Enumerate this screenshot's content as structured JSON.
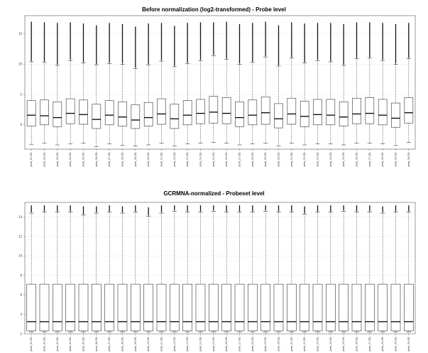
{
  "chart_data": [
    {
      "type": "boxplot",
      "title": "Before normalization (log2-transformed) - Probe level",
      "categories": [
        "peak_01.CEL",
        "peak_02.CEL",
        "peak_03.CEL",
        "peak_04.CEL",
        "peak_05.CEL",
        "peak_06.CEL",
        "peak_07.CEL",
        "peak_08.CEL",
        "peak_09.CEL",
        "peak_10.CEL",
        "peak_11.CEL",
        "peak_12.CEL",
        "peak_13.CEL",
        "peak_14.CEL",
        "peak_15.CEL",
        "peak_16.CEL",
        "peak_17.CEL",
        "peak_18.CEL",
        "peak_19.CEL",
        "peak_20.CEL",
        "peak_21.CEL",
        "peak_22.CEL",
        "peak_23.CEL",
        "peak_24.CEL",
        "peak_25.CEL",
        "peak_26.CEL",
        "peak_27.CEL",
        "peak_28.CEL",
        "peak_29.CEL",
        "peak_30.CEL"
      ],
      "ylim": [
        -4,
        18
      ],
      "yticks": [
        0,
        5,
        10,
        15
      ],
      "ytick_labels": [
        "0",
        "5",
        "10",
        "15"
      ],
      "grid": true,
      "boxes": [
        {
          "min": -3.2,
          "q1": -0.2,
          "median": 1.6,
          "q3": 4.0,
          "max": 10.4,
          "outlier_max": 17.0
        },
        {
          "min": -3.0,
          "q1": 0.0,
          "median": 1.5,
          "q3": 4.1,
          "max": 10.3,
          "outlier_max": 16.9
        },
        {
          "min": -3.3,
          "q1": -0.3,
          "median": 1.2,
          "q3": 3.8,
          "max": 9.8,
          "outlier_max": 16.8
        },
        {
          "min": -3.1,
          "q1": 0.2,
          "median": 1.9,
          "q3": 4.3,
          "max": 10.6,
          "outlier_max": 16.9
        },
        {
          "min": -3.0,
          "q1": 0.1,
          "median": 1.7,
          "q3": 4.1,
          "max": 10.2,
          "outlier_max": 16.7
        },
        {
          "min": -3.6,
          "q1": -0.6,
          "median": 0.9,
          "q3": 3.4,
          "max": 9.9,
          "outlier_max": 16.4
        },
        {
          "min": -3.1,
          "q1": 0.0,
          "median": 1.6,
          "q3": 4.0,
          "max": 10.1,
          "outlier_max": 16.8
        },
        {
          "min": -3.4,
          "q1": -0.2,
          "median": 1.3,
          "q3": 3.8,
          "max": 10.0,
          "outlier_max": 16.6
        },
        {
          "min": -3.5,
          "q1": -0.6,
          "median": 0.8,
          "q3": 3.3,
          "max": 9.3,
          "outlier_max": 16.2
        },
        {
          "min": -3.3,
          "q1": -0.2,
          "median": 1.2,
          "q3": 3.7,
          "max": 9.9,
          "outlier_max": 16.7
        },
        {
          "min": -3.0,
          "q1": 0.1,
          "median": 1.8,
          "q3": 4.3,
          "max": 10.5,
          "outlier_max": 16.8
        },
        {
          "min": -3.5,
          "q1": -0.6,
          "median": 1.0,
          "q3": 3.4,
          "max": 9.6,
          "outlier_max": 16.3
        },
        {
          "min": -3.1,
          "q1": 0.0,
          "median": 1.6,
          "q3": 4.0,
          "max": 10.1,
          "outlier_max": 16.8
        },
        {
          "min": -3.0,
          "q1": 0.2,
          "median": 1.9,
          "q3": 4.2,
          "max": 10.6,
          "outlier_max": 16.9
        },
        {
          "min": -2.9,
          "q1": 0.3,
          "median": 2.1,
          "q3": 4.7,
          "max": 11.4,
          "outlier_max": 16.9
        },
        {
          "min": -3.0,
          "q1": 0.2,
          "median": 1.9,
          "q3": 4.5,
          "max": 10.8,
          "outlier_max": 17.0
        },
        {
          "min": -3.3,
          "q1": -0.3,
          "median": 1.2,
          "q3": 3.8,
          "max": 10.0,
          "outlier_max": 16.6
        },
        {
          "min": -3.1,
          "q1": 0.0,
          "median": 1.6,
          "q3": 4.1,
          "max": 10.3,
          "outlier_max": 16.8
        },
        {
          "min": -3.0,
          "q1": 0.1,
          "median": 2.0,
          "q3": 4.6,
          "max": 11.2,
          "outlier_max": 17.0
        },
        {
          "min": -3.5,
          "q1": -0.5,
          "median": 1.0,
          "q3": 3.5,
          "max": 9.7,
          "outlier_max": 16.4
        },
        {
          "min": -3.0,
          "q1": 0.1,
          "median": 1.8,
          "q3": 4.4,
          "max": 11.0,
          "outlier_max": 16.9
        },
        {
          "min": -3.3,
          "q1": -0.3,
          "median": 1.4,
          "q3": 3.9,
          "max": 10.2,
          "outlier_max": 16.7
        },
        {
          "min": -3.1,
          "q1": 0.0,
          "median": 1.7,
          "q3": 4.2,
          "max": 10.6,
          "outlier_max": 16.8
        },
        {
          "min": -3.1,
          "q1": 0.0,
          "median": 1.6,
          "q3": 4.2,
          "max": 10.4,
          "outlier_max": 16.8
        },
        {
          "min": -3.3,
          "q1": -0.2,
          "median": 1.3,
          "q3": 3.8,
          "max": 9.8,
          "outlier_max": 16.6
        },
        {
          "min": -3.0,
          "q1": 0.2,
          "median": 1.8,
          "q3": 4.4,
          "max": 10.9,
          "outlier_max": 16.9
        },
        {
          "min": -3.0,
          "q1": 0.2,
          "median": 1.9,
          "q3": 4.5,
          "max": 11.0,
          "outlier_max": 16.9
        },
        {
          "min": -3.1,
          "q1": 0.0,
          "median": 1.6,
          "q3": 4.2,
          "max": 10.6,
          "outlier_max": 16.8
        },
        {
          "min": -3.4,
          "q1": -0.4,
          "median": 1.1,
          "q3": 3.6,
          "max": 10.0,
          "outlier_max": 16.6
        },
        {
          "min": -2.9,
          "q1": 0.3,
          "median": 2.0,
          "q3": 4.5,
          "max": 10.9,
          "outlier_max": 16.8
        }
      ]
    },
    {
      "type": "boxplot",
      "title": "GCRMNA-normalized - Probeset level",
      "categories": [
        "peak_01.CEL",
        "peak_02.CEL",
        "peak_03.CEL",
        "peak_04.CEL",
        "peak_05.CEL",
        "peak_06.CEL",
        "peak_07.CEL",
        "peak_08.CEL",
        "peak_09.CEL",
        "peak_10.CEL",
        "peak_11.CEL",
        "peak_12.CEL",
        "peak_13.CEL",
        "peak_14.CEL",
        "peak_15.CEL",
        "peak_16.CEL",
        "peak_17.CEL",
        "peak_18.CEL",
        "peak_19.CEL",
        "peak_20.CEL",
        "peak_21.CEL",
        "peak_22.CEL",
        "peak_23.CEL",
        "peak_24.CEL",
        "peak_25.CEL",
        "peak_26.CEL",
        "peak_27.CEL",
        "peak_28.CEL",
        "peak_29.CEL",
        "peak_30.CEL"
      ],
      "ylim": [
        2,
        15.5
      ],
      "yticks": [
        2,
        4,
        6,
        8,
        10,
        12,
        14
      ],
      "ytick_labels": [
        "2",
        "4",
        "6",
        "8",
        "10",
        "12",
        "14"
      ],
      "grid": true,
      "boxes": [
        {
          "min": 2.2,
          "q1": 2.3,
          "median": 3.25,
          "q3": 7.1,
          "max": 14.4,
          "outlier_max": 15.2
        },
        {
          "min": 2.2,
          "q1": 2.3,
          "median": 3.25,
          "q3": 7.1,
          "max": 14.5,
          "outlier_max": 15.2
        },
        {
          "min": 2.2,
          "q1": 2.3,
          "median": 3.25,
          "q3": 7.1,
          "max": 14.5,
          "outlier_max": 15.2
        },
        {
          "min": 2.2,
          "q1": 2.3,
          "median": 3.25,
          "q3": 7.1,
          "max": 14.5,
          "outlier_max": 15.2
        },
        {
          "min": 2.2,
          "q1": 2.3,
          "median": 3.25,
          "q3": 7.1,
          "max": 14.2,
          "outlier_max": 15.1
        },
        {
          "min": 2.2,
          "q1": 2.3,
          "median": 3.25,
          "q3": 7.1,
          "max": 14.4,
          "outlier_max": 15.1
        },
        {
          "min": 2.2,
          "q1": 2.3,
          "median": 3.25,
          "q3": 7.1,
          "max": 14.5,
          "outlier_max": 15.2
        },
        {
          "min": 2.2,
          "q1": 2.3,
          "median": 3.25,
          "q3": 7.1,
          "max": 14.4,
          "outlier_max": 15.1
        },
        {
          "min": 2.2,
          "q1": 2.3,
          "median": 3.25,
          "q3": 7.1,
          "max": 14.5,
          "outlier_max": 15.2
        },
        {
          "min": 2.2,
          "q1": 2.3,
          "median": 3.25,
          "q3": 7.1,
          "max": 14.1,
          "outlier_max": 15.0
        },
        {
          "min": 2.2,
          "q1": 2.3,
          "median": 3.25,
          "q3": 7.1,
          "max": 14.4,
          "outlier_max": 15.2
        },
        {
          "min": 2.2,
          "q1": 2.3,
          "median": 3.25,
          "q3": 7.1,
          "max": 14.6,
          "outlier_max": 15.2
        },
        {
          "min": 2.2,
          "q1": 2.3,
          "median": 3.25,
          "q3": 7.1,
          "max": 14.5,
          "outlier_max": 15.2
        },
        {
          "min": 2.2,
          "q1": 2.3,
          "median": 3.25,
          "q3": 7.1,
          "max": 14.5,
          "outlier_max": 15.2
        },
        {
          "min": 2.2,
          "q1": 2.3,
          "median": 3.25,
          "q3": 7.1,
          "max": 14.6,
          "outlier_max": 15.2
        },
        {
          "min": 2.2,
          "q1": 2.3,
          "median": 3.25,
          "q3": 7.1,
          "max": 14.5,
          "outlier_max": 15.2
        },
        {
          "min": 2.2,
          "q1": 2.3,
          "median": 3.25,
          "q3": 7.1,
          "max": 14.5,
          "outlier_max": 15.2
        },
        {
          "min": 2.2,
          "q1": 2.3,
          "median": 3.25,
          "q3": 7.1,
          "max": 14.5,
          "outlier_max": 15.2
        },
        {
          "min": 2.2,
          "q1": 2.3,
          "median": 3.25,
          "q3": 7.1,
          "max": 14.6,
          "outlier_max": 15.2
        },
        {
          "min": 2.2,
          "q1": 2.3,
          "median": 3.25,
          "q3": 7.1,
          "max": 14.5,
          "outlier_max": 15.2
        },
        {
          "min": 2.2,
          "q1": 2.3,
          "median": 3.25,
          "q3": 7.1,
          "max": 14.5,
          "outlier_max": 15.2
        },
        {
          "min": 2.2,
          "q1": 2.3,
          "median": 3.25,
          "q3": 7.1,
          "max": 14.3,
          "outlier_max": 15.1
        },
        {
          "min": 2.2,
          "q1": 2.3,
          "median": 3.25,
          "q3": 7.1,
          "max": 14.5,
          "outlier_max": 15.2
        },
        {
          "min": 2.2,
          "q1": 2.3,
          "median": 3.25,
          "q3": 7.1,
          "max": 14.5,
          "outlier_max": 15.2
        },
        {
          "min": 2.2,
          "q1": 2.3,
          "median": 3.25,
          "q3": 7.1,
          "max": 14.6,
          "outlier_max": 15.2
        },
        {
          "min": 2.2,
          "q1": 2.3,
          "median": 3.25,
          "q3": 7.1,
          "max": 14.5,
          "outlier_max": 15.2
        },
        {
          "min": 2.2,
          "q1": 2.3,
          "median": 3.25,
          "q3": 7.1,
          "max": 14.5,
          "outlier_max": 15.2
        },
        {
          "min": 2.2,
          "q1": 2.3,
          "median": 3.25,
          "q3": 7.1,
          "max": 14.4,
          "outlier_max": 15.1
        },
        {
          "min": 2.2,
          "q1": 2.3,
          "median": 3.25,
          "q3": 7.1,
          "max": 14.5,
          "outlier_max": 15.2
        },
        {
          "min": 2.2,
          "q1": 2.3,
          "median": 3.25,
          "q3": 7.1,
          "max": 14.5,
          "outlier_max": 15.2
        }
      ]
    }
  ]
}
